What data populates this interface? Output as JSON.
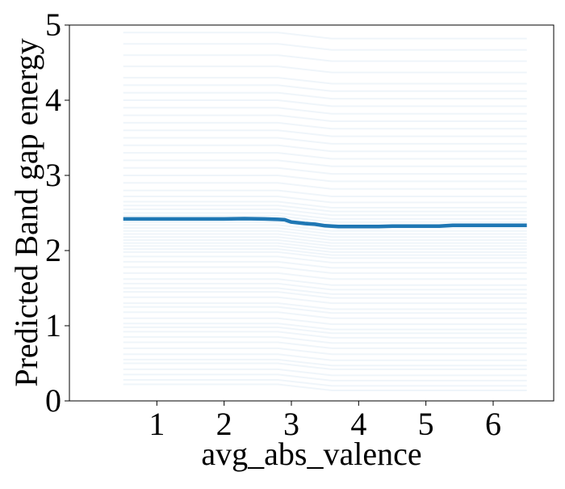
{
  "chart_data": {
    "type": "line",
    "xlabel": "avg_abs_valence",
    "ylabel": "Predicted Band gap energy",
    "xlim": [
      -0.3,
      6.9
    ],
    "ylim": [
      0,
      5
    ],
    "x_ticks": [
      1,
      2,
      3,
      4,
      5,
      6
    ],
    "y_ticks": [
      0,
      1,
      2,
      3,
      4,
      5
    ],
    "grid": false,
    "legend": "none",
    "colors": {
      "line": "#1f77b4",
      "ice": "#1f77b4",
      "axis": "#000000"
    },
    "series": [
      {
        "role": "average",
        "x": [
          0.5,
          1.0,
          1.5,
          2.0,
          2.3,
          2.6,
          2.8,
          2.9,
          3.0,
          3.2,
          3.35,
          3.5,
          3.7,
          4.0,
          4.3,
          4.5,
          4.8,
          5.0,
          5.2,
          5.4,
          5.6,
          6.0,
          6.5
        ],
        "y": [
          2.42,
          2.42,
          2.42,
          2.42,
          2.425,
          2.42,
          2.415,
          2.41,
          2.38,
          2.36,
          2.35,
          2.33,
          2.32,
          2.32,
          2.32,
          2.325,
          2.325,
          2.325,
          2.325,
          2.335,
          2.335,
          2.335,
          2.335
        ]
      },
      {
        "role": "individual",
        "x": [
          0.5,
          2.8,
          3.6,
          6.5
        ],
        "baselines": [
          0.22,
          0.28,
          0.35,
          0.42,
          0.5,
          0.55,
          0.62,
          0.7,
          0.78,
          0.85,
          0.92,
          0.98,
          1.03,
          1.1,
          1.18,
          1.25,
          1.3,
          1.38,
          1.45,
          1.5,
          1.56,
          1.62,
          1.7,
          1.78,
          1.85,
          1.92,
          1.98,
          2.02,
          2.06,
          2.1,
          2.14,
          2.18,
          2.22,
          2.26,
          2.3,
          2.34,
          2.38,
          2.42,
          2.46,
          2.5,
          2.55,
          2.6,
          2.65,
          2.72,
          2.8,
          2.9,
          3.0,
          3.1,
          3.2,
          3.3,
          3.4,
          3.5,
          3.6,
          3.7,
          3.8,
          3.9,
          4.0,
          4.1,
          4.2,
          4.3,
          4.45,
          4.6,
          4.75,
          4.9
        ],
        "offsets": [
          0,
          0,
          -0.08,
          -0.08
        ]
      }
    ]
  }
}
